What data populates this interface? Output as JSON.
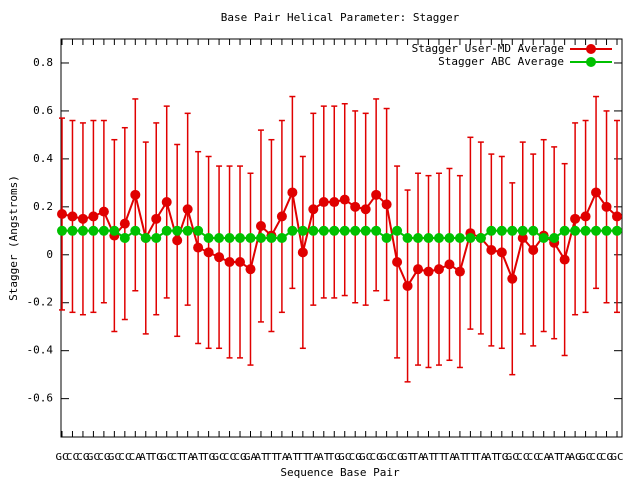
{
  "chart_data": {
    "type": "errorbar-line",
    "title": "Base Pair Helical Parameter: Stagger",
    "xlabel": "Sequence Base Pair",
    "ylabel": "Stagger (Angstroms)",
    "categories": [
      "GC",
      "CC",
      "CG",
      "GC",
      "CG",
      "GC",
      "CC",
      "CA",
      "AT",
      "TG",
      "GC",
      "CT",
      "TA",
      "AT",
      "TG",
      "GC",
      "CC",
      "CG",
      "GA",
      "AT",
      "TT",
      "TA",
      "AT",
      "TT",
      "TA",
      "AT",
      "TG",
      "GC",
      "CG",
      "GC",
      "CG",
      "GC",
      "CG",
      "GT",
      "TA",
      "AT",
      "TT",
      "TA",
      "AT",
      "TT",
      "TA",
      "AT",
      "TG",
      "GC",
      "CC",
      "CC",
      "CA",
      "AT",
      "TA",
      "AG",
      "GC",
      "CC",
      "CG",
      "GC"
    ],
    "series": [
      {
        "name": "Stagger User-MD Average",
        "color": "#e00000",
        "values": [
          0.17,
          0.16,
          0.15,
          0.16,
          0.18,
          0.08,
          0.13,
          0.25,
          0.07,
          0.15,
          0.22,
          0.06,
          0.19,
          0.03,
          0.01,
          -0.01,
          -0.03,
          -0.03,
          -0.06,
          0.12,
          0.08,
          0.16,
          0.26,
          0.01,
          0.19,
          0.22,
          0.22,
          0.23,
          0.2,
          0.19,
          0.25,
          0.21,
          -0.03,
          -0.13,
          -0.06,
          -0.07,
          -0.06,
          -0.04,
          -0.07,
          0.09,
          0.07,
          0.02,
          0.01,
          -0.1,
          0.07,
          0.02,
          0.08,
          0.05,
          -0.02,
          0.15,
          0.16,
          0.26,
          0.2,
          0.16
        ],
        "errors": [
          0.4,
          0.4,
          0.4,
          0.4,
          0.38,
          0.4,
          0.4,
          0.4,
          0.4,
          0.4,
          0.4,
          0.4,
          0.4,
          0.4,
          0.4,
          0.38,
          0.4,
          0.4,
          0.4,
          0.4,
          0.4,
          0.4,
          0.4,
          0.4,
          0.4,
          0.4,
          0.4,
          0.4,
          0.4,
          0.4,
          0.4,
          0.4,
          0.4,
          0.4,
          0.4,
          0.4,
          0.4,
          0.4,
          0.4,
          0.4,
          0.4,
          0.4,
          0.4,
          0.4,
          0.4,
          0.4,
          0.4,
          0.4,
          0.4,
          0.4,
          0.4,
          0.4,
          0.4,
          0.4
        ]
      },
      {
        "name": "Stagger ABC Average",
        "color": "#00c000",
        "values": [
          0.1,
          0.1,
          0.1,
          0.1,
          0.1,
          0.1,
          0.07,
          0.1,
          0.07,
          0.07,
          0.1,
          0.1,
          0.1,
          0.1,
          0.07,
          0.07,
          0.07,
          0.07,
          0.07,
          0.07,
          0.07,
          0.07,
          0.1,
          0.1,
          0.1,
          0.1,
          0.1,
          0.1,
          0.1,
          0.1,
          0.1,
          0.07,
          0.1,
          0.07,
          0.07,
          0.07,
          0.07,
          0.07,
          0.07,
          0.07,
          0.07,
          0.1,
          0.1,
          0.1,
          0.1,
          0.1,
          0.07,
          0.07,
          0.1,
          0.1,
          0.1,
          0.1,
          0.1,
          0.1
        ]
      }
    ],
    "ylim": [
      -0.76,
      0.9
    ],
    "yticks": [
      -0.6,
      -0.4,
      -0.2,
      0,
      0.2,
      0.4,
      0.6,
      0.8
    ],
    "legend": "top-right"
  }
}
